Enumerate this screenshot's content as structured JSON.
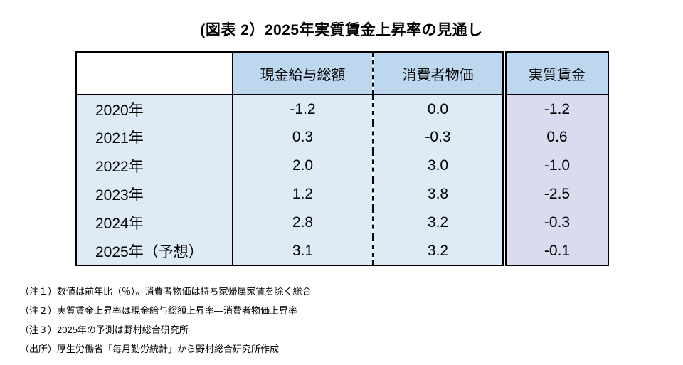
{
  "title": "(図表 2）2025年実質賃金上昇率の見通し",
  "table": {
    "columns": [
      "",
      "現金給与総額",
      "消費者物価",
      "実質賃金"
    ],
    "rows": [
      {
        "year": "2020年",
        "wages": "-1.2",
        "cpi": "0.0",
        "real": "-1.2"
      },
      {
        "year": "2021年",
        "wages": "0.3",
        "cpi": "-0.3",
        "real": "0.6"
      },
      {
        "year": "2022年",
        "wages": "2.0",
        "cpi": "3.0",
        "real": "-1.0"
      },
      {
        "year": "2023年",
        "wages": "1.2",
        "cpi": "3.8",
        "real": "-2.5"
      },
      {
        "year": "2024年",
        "wages": "2.8",
        "cpi": "3.2",
        "real": "-0.3"
      },
      {
        "year": "2025年（予想）",
        "wages": "3.1",
        "cpi": "3.2",
        "real": "-0.1"
      }
    ]
  },
  "notes": [
    "（注１）数値は前年比（％）。消費者物価は持ち家帰属家賃を除く総合",
    "（注２）実質賃金上昇率は現金給与総額上昇率―消費者物価上昇率",
    "（注３）2025年の予測は野村総合研究所",
    "（出所）厚生労働省「毎月勤労統計」から野村総合研究所作成"
  ],
  "colors": {
    "header-fill": "#bdd7ee",
    "body-fill": "#deeaf6",
    "highlight-fill": "#d9dcee"
  },
  "chart_data": {
    "type": "table",
    "title": "(図表 2）2025年実質賃金上昇率の見通し",
    "columns": [
      "現金給与総額",
      "消費者物価",
      "実質賃金"
    ],
    "categories": [
      "2020年",
      "2021年",
      "2022年",
      "2023年",
      "2024年",
      "2025年（予想）"
    ],
    "series": [
      {
        "name": "現金給与総額",
        "values": [
          -1.2,
          0.3,
          2.0,
          1.2,
          2.8,
          3.1
        ]
      },
      {
        "name": "消費者物価",
        "values": [
          0.0,
          -0.3,
          3.0,
          3.8,
          3.2,
          3.2
        ]
      },
      {
        "name": "実質賃金",
        "values": [
          -1.2,
          0.6,
          -1.0,
          -2.5,
          -0.3,
          -0.1
        ]
      }
    ],
    "unit": "前年比（％）"
  }
}
